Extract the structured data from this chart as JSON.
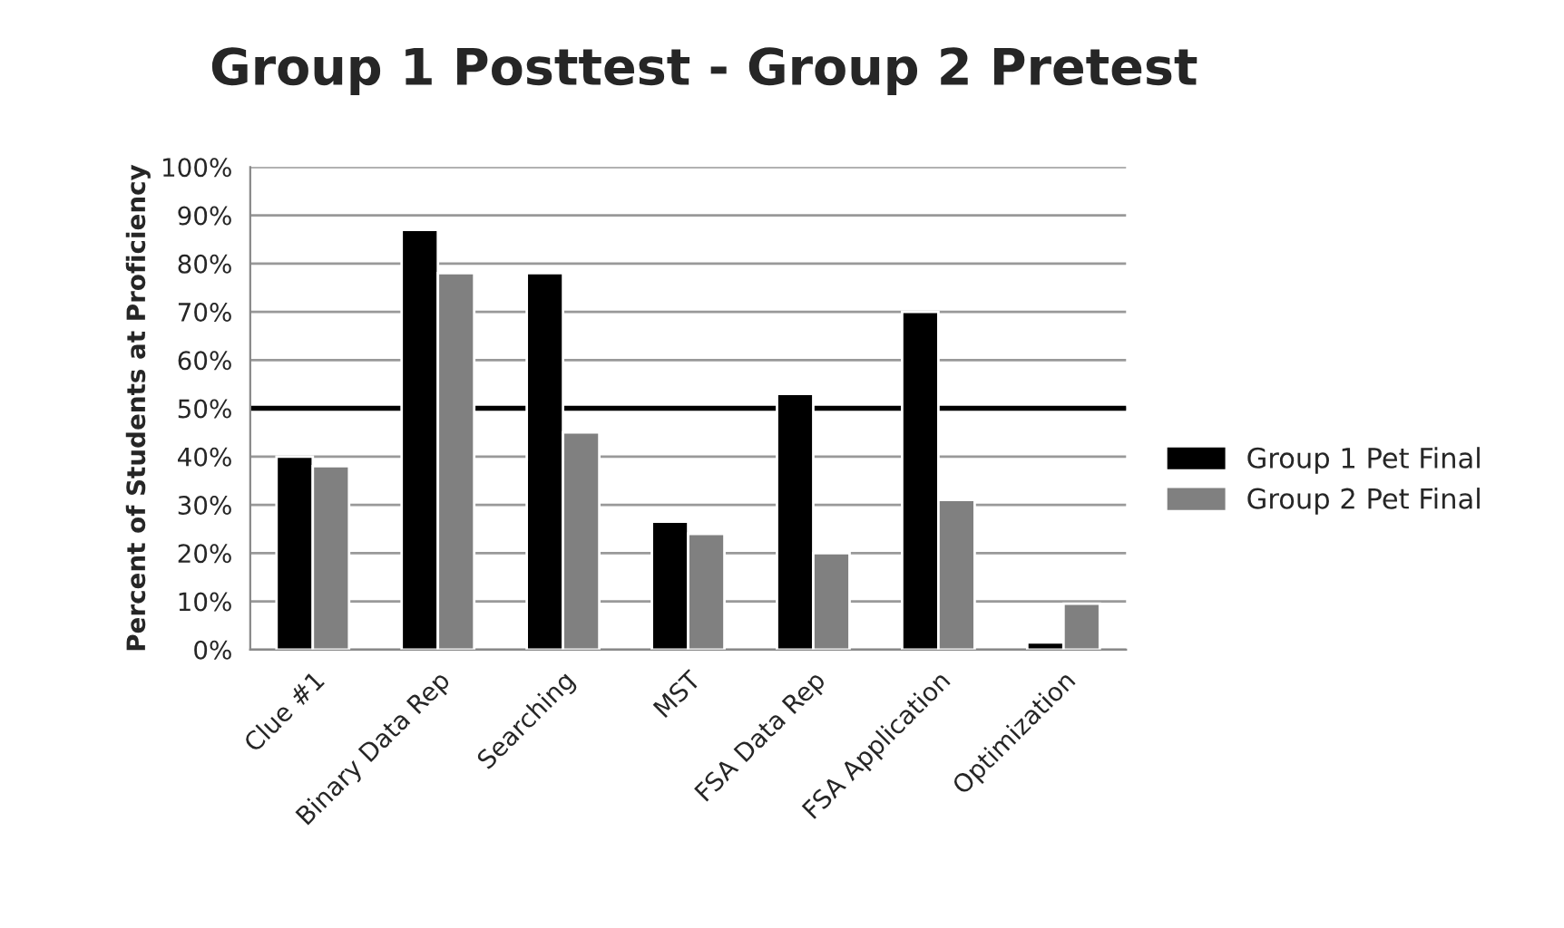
{
  "chart_data": {
    "type": "bar",
    "title": "Group 1 Posttest - Group 2 Pretest",
    "ylabel": "Percent of Students at Proficiency",
    "categories": [
      "Clue #1",
      "Binary Data Rep",
      "Searching",
      "MST",
      "FSA Data Rep",
      "FSA Application",
      "Optimization"
    ],
    "series": [
      {
        "name": "Group 1 Pet Final",
        "color": "#000000",
        "values": [
          40,
          87,
          78,
          26.5,
          53,
          70,
          1.5
        ]
      },
      {
        "name": "Group 2 Pet Final",
        "color": "#808080",
        "values": [
          38,
          78,
          45,
          24,
          20,
          31,
          9.5
        ]
      }
    ],
    "ylim": [
      0,
      100
    ],
    "yticks": [
      {
        "value": 0,
        "label": "0%"
      },
      {
        "value": 10,
        "label": "10%"
      },
      {
        "value": 20,
        "label": "20%"
      },
      {
        "value": 30,
        "label": "30%"
      },
      {
        "value": 40,
        "label": "40%"
      },
      {
        "value": 50,
        "label": "50%"
      },
      {
        "value": 60,
        "label": "60%"
      },
      {
        "value": 70,
        "label": "70%"
      },
      {
        "value": 80,
        "label": "80%"
      },
      {
        "value": 90,
        "label": "90%"
      },
      {
        "value": 100,
        "label": "100%"
      }
    ],
    "ref_lines": [
      {
        "axis": "y",
        "value": 50,
        "color": "#000000"
      }
    ],
    "grid": "y",
    "legend": "right"
  }
}
